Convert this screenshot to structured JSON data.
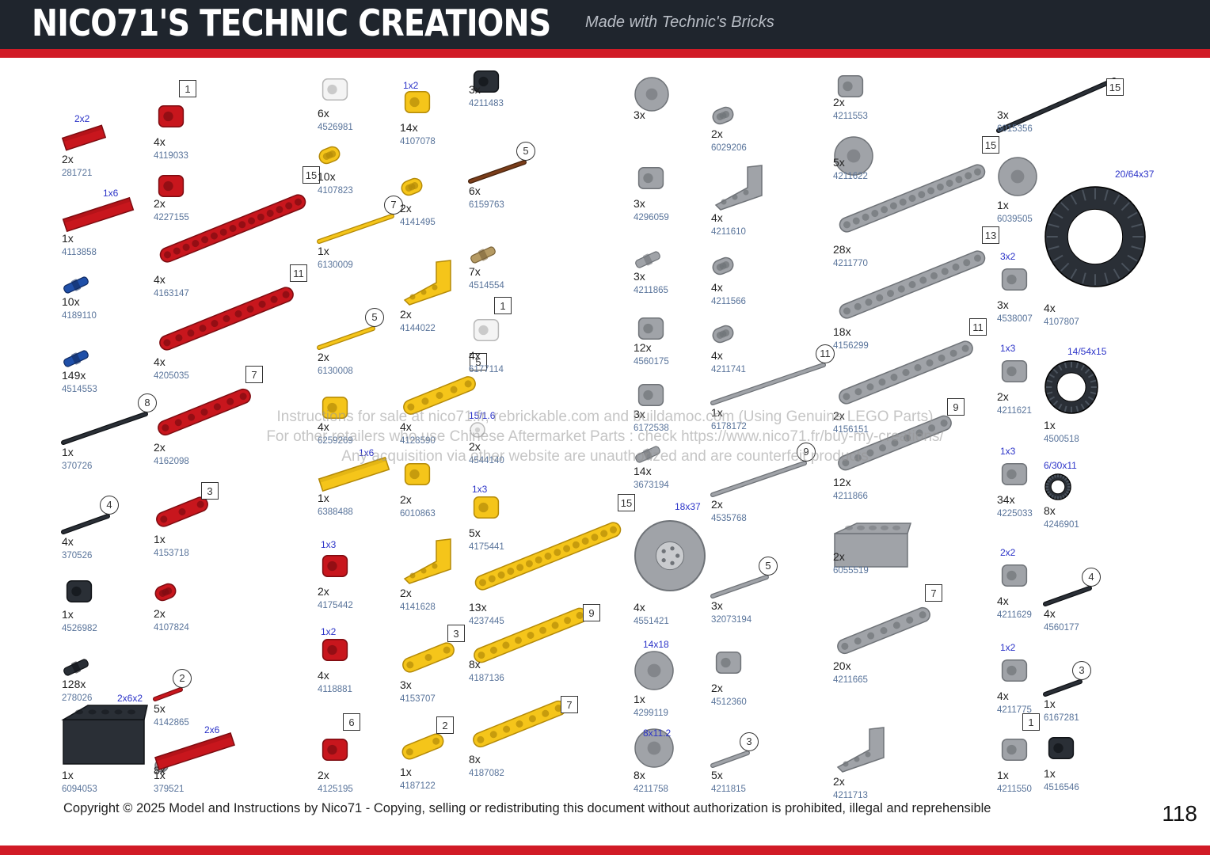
{
  "header": {
    "title": "NICO71'S TECHNIC CREATIONS",
    "subtitle": "Made with Technic's Bricks"
  },
  "watermark": {
    "line1": "Instructions for sale at nico71.fr, rebrickable.com and buildamoc.com (Using Genuine LEGO Parts)",
    "line2": "For other retailers who use Chinese Aftermarket Parts : check https://www.nico71.fr/buy-my-creations/",
    "line3": "Any acquisition via other website are unauthorized and are counterfeit products"
  },
  "footer": {
    "copyright": "Copyright © 2025 Model and Instructions by Nico71 - Copying, selling or redistributing this document without authorization is prohibited, illegal and reprehensible",
    "page_number": "118"
  },
  "colors": {
    "red": "#c8161d",
    "yellow": "#f5c51a",
    "gray": "#a0a3a8",
    "dark": "#2a2f36",
    "blue": "#1f4fa8",
    "white": "#f4f4f4",
    "brown": "#7a3d1a",
    "tan": "#b59a63"
  },
  "parts": [
    {
      "qty": "2x",
      "id": "281721",
      "dim": "2x2",
      "color": "red",
      "shape": "plate"
    },
    {
      "qty": "1x",
      "id": "4113858",
      "dim": "1x6",
      "color": "red",
      "shape": "plate"
    },
    {
      "qty": "10x",
      "id": "4189110",
      "color": "blue",
      "shape": "pin"
    },
    {
      "qty": "149x",
      "id": "4514553",
      "color": "blue",
      "shape": "pin"
    },
    {
      "qty": "1x",
      "id": "370726",
      "len": "8",
      "lenType": "circle",
      "color": "dark",
      "shape": "axle"
    },
    {
      "qty": "4x",
      "id": "370526",
      "len": "4",
      "lenType": "circle",
      "color": "dark",
      "shape": "axle"
    },
    {
      "qty": "1x",
      "id": "4526982",
      "color": "dark",
      "shape": "connector"
    },
    {
      "qty": "128x",
      "id": "278026",
      "color": "dark",
      "shape": "pin"
    },
    {
      "qty": "1x",
      "id": "6094053",
      "dim": "2x6x2",
      "color": "dark",
      "shape": "brick"
    },
    {
      "qty": "8x",
      "id": "",
      "color": "gray",
      "shape": "hub"
    },
    {
      "qty": "4x",
      "id": "4119033",
      "len": "1",
      "lenType": "square",
      "color": "red",
      "shape": "connector"
    },
    {
      "qty": "2x",
      "id": "4227155",
      "color": "red",
      "shape": "connector"
    },
    {
      "qty": "4x",
      "id": "4163147",
      "len": "15",
      "lenType": "square",
      "color": "red",
      "shape": "beam"
    },
    {
      "qty": "4x",
      "id": "4205035",
      "len": "11",
      "lenType": "square",
      "color": "red",
      "shape": "beam"
    },
    {
      "qty": "2x",
      "id": "4162098",
      "len": "7",
      "lenType": "square",
      "color": "red",
      "shape": "beam"
    },
    {
      "qty": "1x",
      "id": "4153718",
      "len": "3",
      "lenType": "square",
      "color": "red",
      "shape": "beam"
    },
    {
      "qty": "2x",
      "id": "4107824",
      "color": "red",
      "shape": "beam"
    },
    {
      "qty": "5x",
      "id": "4142865",
      "len": "2",
      "lenType": "circle",
      "color": "red",
      "shape": "axle"
    },
    {
      "qty": "1x",
      "id": "379521",
      "dim": "2x6",
      "color": "red",
      "shape": "plate"
    },
    {
      "qty": "6x",
      "id": "4526981",
      "color": "white",
      "shape": "connector"
    },
    {
      "qty": "10x",
      "id": "4107823",
      "color": "yellow",
      "shape": "beam"
    },
    {
      "qty": "1x",
      "id": "6130009",
      "len": "7",
      "lenType": "circle",
      "color": "yellow",
      "shape": "axle"
    },
    {
      "qty": "2x",
      "id": "6130008",
      "len": "5",
      "lenType": "circle",
      "color": "yellow",
      "shape": "axle"
    },
    {
      "qty": "4x",
      "id": "6259269",
      "color": "yellow",
      "shape": "connector"
    },
    {
      "qty": "1x",
      "id": "6388488",
      "dim": "1x6",
      "color": "yellow",
      "shape": "plate"
    },
    {
      "qty": "2x",
      "id": "4175442",
      "dim": "1x3",
      "color": "red",
      "shape": "connector"
    },
    {
      "qty": "4x",
      "id": "4118881",
      "dim": "1x2",
      "color": "red",
      "shape": "connector"
    },
    {
      "qty": "2x",
      "id": "4125195",
      "len": "6",
      "lenType": "square",
      "color": "red",
      "shape": "connector"
    },
    {
      "qty": "14x",
      "id": "4107078",
      "dim": "1x2",
      "color": "yellow",
      "shape": "connector"
    },
    {
      "qty": "2x",
      "id": "4141495",
      "color": "yellow",
      "shape": "beam"
    },
    {
      "qty": "2x",
      "id": "4144022",
      "color": "yellow",
      "shape": "lbeam"
    },
    {
      "qty": "4x",
      "id": "4128590",
      "len": "5",
      "lenType": "square",
      "color": "yellow",
      "shape": "beam"
    },
    {
      "qty": "2x",
      "id": "6010863",
      "color": "yellow",
      "shape": "connector"
    },
    {
      "qty": "2x",
      "id": "4141628",
      "color": "yellow",
      "shape": "lbeam"
    },
    {
      "qty": "3x",
      "id": "4153707",
      "len": "3",
      "lenType": "square",
      "color": "yellow",
      "shape": "beam"
    },
    {
      "qty": "1x",
      "id": "4187122",
      "len": "2",
      "lenType": "square",
      "color": "yellow",
      "shape": "beam"
    },
    {
      "qty": "3x",
      "id": "4211483",
      "color": "dark",
      "shape": "connector"
    },
    {
      "qty": "6x",
      "id": "6159763",
      "len": "5",
      "lenType": "circle",
      "color": "brown",
      "shape": "axle"
    },
    {
      "qty": "7x",
      "id": "4514554",
      "color": "tan",
      "shape": "pin"
    },
    {
      "qty": "4x",
      "id": "6177114",
      "len": "1",
      "lenType": "square",
      "color": "white",
      "shape": "connector"
    },
    {
      "qty": "2x",
      "id": "4544140",
      "dim": "15/1.6",
      "color": "white",
      "shape": "hub"
    },
    {
      "qty": "5x",
      "id": "4175441",
      "dim": "1x3",
      "color": "yellow",
      "shape": "connector"
    },
    {
      "qty": "13x",
      "id": "4237445",
      "len": "15",
      "lenType": "square",
      "color": "yellow",
      "shape": "beam"
    },
    {
      "qty": "8x",
      "id": "4187136",
      "len": "9",
      "lenType": "square",
      "color": "yellow",
      "shape": "beam"
    },
    {
      "qty": "8x",
      "id": "4187082",
      "len": "7",
      "lenType": "square",
      "color": "yellow",
      "shape": "beam"
    },
    {
      "qty": "3x",
      "id": "",
      "color": "gray",
      "shape": "hub"
    },
    {
      "qty": "3x",
      "id": "4296059",
      "color": "gray",
      "shape": "connector"
    },
    {
      "qty": "3x",
      "id": "4211865",
      "color": "gray",
      "shape": "pin"
    },
    {
      "qty": "12x",
      "id": "4560175",
      "color": "gray",
      "shape": "connector"
    },
    {
      "qty": "3x",
      "id": "6172538",
      "color": "gray",
      "shape": "connector"
    },
    {
      "qty": "14x",
      "id": "3673194",
      "color": "gray",
      "shape": "pin"
    },
    {
      "qty": "4x",
      "id": "4551421",
      "dim": "18x37",
      "color": "gray",
      "shape": "rim"
    },
    {
      "qty": "1x",
      "id": "4299119",
      "dim": "14x18",
      "color": "gray",
      "shape": "hub"
    },
    {
      "qty": "8x",
      "id": "4211758",
      "dim": "8x11.2",
      "color": "gray",
      "shape": "hub"
    },
    {
      "qty": "2x",
      "id": "6029206",
      "color": "gray",
      "shape": "beam"
    },
    {
      "qty": "4x",
      "id": "4211610",
      "color": "gray",
      "shape": "lbeam"
    },
    {
      "qty": "4x",
      "id": "4211566",
      "color": "gray",
      "shape": "beam"
    },
    {
      "qty": "4x",
      "id": "4211741",
      "color": "gray",
      "shape": "beam"
    },
    {
      "qty": "1x",
      "id": "6178172",
      "len": "11",
      "lenType": "circle",
      "color": "gray",
      "shape": "axle"
    },
    {
      "qty": "2x",
      "id": "4535768",
      "len": "9",
      "lenType": "circle",
      "color": "gray",
      "shape": "axle"
    },
    {
      "qty": "3x",
      "id": "32073194",
      "len": "5",
      "lenType": "circle",
      "color": "gray",
      "shape": "axle"
    },
    {
      "qty": "2x",
      "id": "4512360",
      "color": "gray",
      "shape": "connector"
    },
    {
      "qty": "5x",
      "id": "4211815",
      "len": "3",
      "lenType": "circle",
      "color": "gray",
      "shape": "axle"
    },
    {
      "qty": "2x",
      "id": "4211553",
      "color": "gray",
      "shape": "connector"
    },
    {
      "qty": "5x",
      "id": "4211622",
      "color": "gray",
      "shape": "hub"
    },
    {
      "qty": "28x",
      "id": "4211770",
      "len": "15",
      "lenType": "square",
      "color": "gray",
      "shape": "beam"
    },
    {
      "qty": "18x",
      "id": "4156299",
      "len": "13",
      "lenType": "square",
      "color": "gray",
      "shape": "beam"
    },
    {
      "qty": "2x",
      "id": "4156151",
      "len": "11",
      "lenType": "square",
      "color": "gray",
      "shape": "beam"
    },
    {
      "qty": "12x",
      "id": "4211866",
      "len": "9",
      "lenType": "square",
      "color": "gray",
      "shape": "beam"
    },
    {
      "qty": "2x",
      "id": "6055519",
      "color": "gray",
      "shape": "brick"
    },
    {
      "qty": "20x",
      "id": "4211665",
      "len": "7",
      "lenType": "square",
      "color": "gray",
      "shape": "beam"
    },
    {
      "qty": "2x",
      "id": "4211713",
      "color": "gray",
      "shape": "lbeam"
    },
    {
      "qty": "3x",
      "id": "6015356",
      "len": "15",
      "lenType": "square",
      "color": "dark",
      "shape": "axle"
    },
    {
      "qty": "1x",
      "id": "6039505",
      "color": "gray",
      "shape": "hub"
    },
    {
      "qty": "3x",
      "id": "4538007",
      "dim": "3x2",
      "color": "gray",
      "shape": "connector"
    },
    {
      "qty": "2x",
      "id": "4211621",
      "dim": "1x3",
      "color": "gray",
      "shape": "connector"
    },
    {
      "qty": "34x",
      "id": "4225033",
      "dim": "1x3",
      "color": "gray",
      "shape": "connector"
    },
    {
      "qty": "4x",
      "id": "4211629",
      "dim": "2x2",
      "color": "gray",
      "shape": "connector"
    },
    {
      "qty": "4x",
      "id": "4211775",
      "dim": "1x2",
      "color": "gray",
      "shape": "connector"
    },
    {
      "qty": "1x",
      "id": "4211550",
      "len": "1",
      "lenType": "square",
      "color": "gray",
      "shape": "connector"
    },
    {
      "qty": "4x",
      "id": "4107807",
      "dim": "20/64x37",
      "color": "dark",
      "shape": "tire"
    },
    {
      "qty": "1x",
      "id": "4500518",
      "dim": "14/54x15",
      "color": "dark",
      "shape": "tire"
    },
    {
      "qty": "8x",
      "id": "4246901",
      "dim": "6/30x11",
      "color": "dark",
      "shape": "tire"
    },
    {
      "qty": "4x",
      "id": "4560177",
      "len": "4",
      "lenType": "circle",
      "color": "dark",
      "shape": "axle"
    },
    {
      "qty": "1x",
      "id": "6167281",
      "len": "3",
      "lenType": "circle",
      "color": "dark",
      "shape": "axle"
    },
    {
      "qty": "1x",
      "id": "4516546",
      "color": "dark",
      "shape": "connector"
    }
  ]
}
